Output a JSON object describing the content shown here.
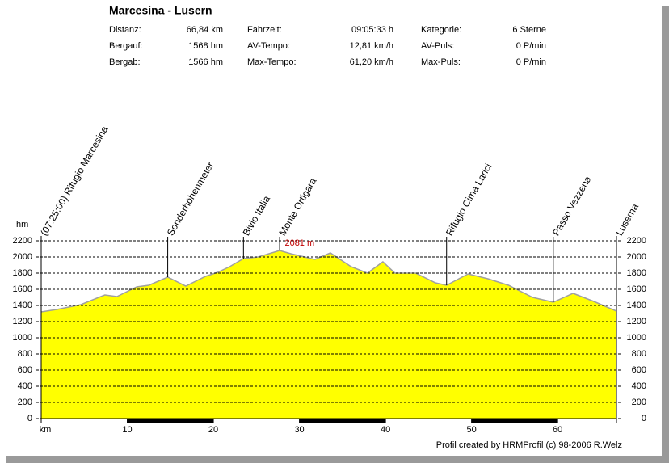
{
  "chart_data": {
    "type": "area",
    "title": "Marcesina - Lusern",
    "stats": [
      [
        {
          "label": "Distanz:",
          "value": "66,84 km"
        },
        {
          "label": "Bergauf:",
          "value": "1568 hm"
        },
        {
          "label": "Bergab:",
          "value": "1566 hm"
        }
      ],
      [
        {
          "label": "Fahrzeit:",
          "value": "09:05:33 h"
        },
        {
          "label": "AV-Tempo:",
          "value": "12,81 km/h"
        },
        {
          "label": "Max-Tempo:",
          "value": "61,20 km/h"
        }
      ],
      [
        {
          "label": "Kategorie:",
          "value": "6 Sterne"
        },
        {
          "label": "AV-Puls:",
          "value": "0 P/min"
        },
        {
          "label": "Max-Puls:",
          "value": "0 P/min"
        }
      ]
    ],
    "y_label": "hm",
    "x_label": "km",
    "x": [
      0,
      1.8,
      4.6,
      7.4,
      8.8,
      11.1,
      12.5,
      14.7,
      16.8,
      19.1,
      20.5,
      21.9,
      23.5,
      25.2,
      27.7,
      29.0,
      31.8,
      33.6,
      36.0,
      37.9,
      39.7,
      41.1,
      43.5,
      45.8,
      47.1,
      49.6,
      51.9,
      54.3,
      57.1,
      59.5,
      61.8,
      64.2,
      66.84
    ],
    "values": [
      1320,
      1350,
      1410,
      1530,
      1510,
      1630,
      1650,
      1750,
      1640,
      1760,
      1810,
      1880,
      1980,
      2000,
      2080,
      2040,
      1970,
      2050,
      1880,
      1800,
      1940,
      1800,
      1800,
      1680,
      1650,
      1790,
      1730,
      1650,
      1500,
      1440,
      1550,
      1450,
      1330
    ],
    "color": "#ffff00",
    "line_color": "#a0a0a0",
    "xlim": [
      0,
      66.84
    ],
    "xticks": [
      10,
      20,
      30,
      40,
      50,
      60
    ],
    "ylim": [
      0,
      2200
    ],
    "yticks": [
      0,
      200,
      400,
      600,
      800,
      1000,
      1200,
      1400,
      1600,
      1800,
      2000,
      2200
    ],
    "grid": true,
    "waypoints": [
      {
        "label": "(07:25:00) Rifugio Marcesina",
        "km": 0,
        "elevation": 1320
      },
      {
        "label": "Sonderhöhenmeter",
        "km": 14.7,
        "elevation": 1750
      },
      {
        "label": "Bivio Italia",
        "km": 23.5,
        "elevation": 1980
      },
      {
        "label": "Monte Ortigara",
        "km": 27.7,
        "elevation": 2080
      },
      {
        "label": "Rifugio Cima Larici",
        "km": 47.1,
        "elevation": 1650
      },
      {
        "label": "Passo Vezzena",
        "km": 59.5,
        "elevation": 1440
      },
      {
        "label": "Luserna",
        "km": 66.84,
        "elevation": 1330
      }
    ],
    "max_annotation": {
      "value": 2081,
      "label": "2081 m",
      "x": 28.3
    },
    "footer": "Profil created by HRMProfil (c) 98-2006 R.Welz"
  }
}
